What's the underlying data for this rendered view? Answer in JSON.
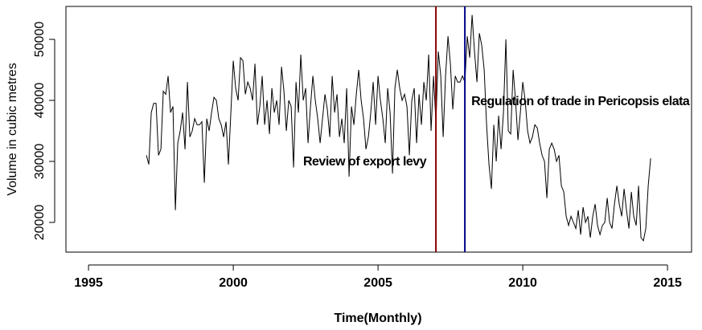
{
  "chart_data": {
    "type": "line",
    "xlabel": "Time(Monthly)",
    "ylabel": "Volume in cubic metres",
    "color": "#000000",
    "xlim": [
      1994.22,
      2015.83
    ],
    "ylim": [
      15132,
      55395
    ],
    "xticks": [
      1995,
      2000,
      2005,
      2010,
      2015
    ],
    "yticks": [
      20000,
      30000,
      40000,
      50000
    ],
    "vlines": [
      {
        "x": 2007,
        "color": "#8b0000",
        "label": "Review of export levy"
      },
      {
        "x": 2008,
        "color": "#00008b",
        "label": "Regulation of trade in Pericopsis elata"
      }
    ],
    "x": [
      1997,
      1997.083,
      1997.167,
      1997.25,
      1997.333,
      1997.417,
      1997.5,
      1997.583,
      1997.667,
      1997.75,
      1997.833,
      1997.917,
      1998,
      1998.083,
      1998.167,
      1998.25,
      1998.333,
      1998.417,
      1998.5,
      1998.583,
      1998.667,
      1998.75,
      1998.833,
      1998.917,
      1999,
      1999.083,
      1999.167,
      1999.25,
      1999.333,
      1999.417,
      1999.5,
      1999.583,
      1999.667,
      1999.75,
      1999.833,
      1999.917,
      2000,
      2000.083,
      2000.167,
      2000.25,
      2000.333,
      2000.417,
      2000.5,
      2000.583,
      2000.667,
      2000.75,
      2000.833,
      2000.917,
      2001,
      2001.083,
      2001.167,
      2001.25,
      2001.333,
      2001.417,
      2001.5,
      2001.583,
      2001.667,
      2001.75,
      2001.833,
      2001.917,
      2002,
      2002.083,
      2002.167,
      2002.25,
      2002.333,
      2002.417,
      2002.5,
      2002.583,
      2002.667,
      2002.75,
      2002.833,
      2002.917,
      2003,
      2003.083,
      2003.167,
      2003.25,
      2003.333,
      2003.417,
      2003.5,
      2003.583,
      2003.667,
      2003.75,
      2003.833,
      2003.917,
      2004,
      2004.083,
      2004.167,
      2004.25,
      2004.333,
      2004.417,
      2004.5,
      2004.583,
      2004.667,
      2004.75,
      2004.833,
      2004.917,
      2005,
      2005.083,
      2005.167,
      2005.25,
      2005.333,
      2005.417,
      2005.5,
      2005.583,
      2005.667,
      2005.75,
      2005.833,
      2005.917,
      2006,
      2006.083,
      2006.167,
      2006.25,
      2006.333,
      2006.417,
      2006.5,
      2006.583,
      2006.667,
      2006.75,
      2006.833,
      2006.917,
      2007,
      2007.083,
      2007.167,
      2007.25,
      2007.333,
      2007.417,
      2007.5,
      2007.583,
      2007.667,
      2007.75,
      2007.833,
      2007.917,
      2008,
      2008.083,
      2008.167,
      2008.25,
      2008.333,
      2008.417,
      2008.5,
      2008.583,
      2008.667,
      2008.75,
      2008.833,
      2008.917,
      2009,
      2009.083,
      2009.167,
      2009.25,
      2009.333,
      2009.417,
      2009.5,
      2009.583,
      2009.667,
      2009.75,
      2009.833,
      2009.917,
      2010,
      2010.083,
      2010.167,
      2010.25,
      2010.333,
      2010.417,
      2010.5,
      2010.583,
      2010.667,
      2010.75,
      2010.833,
      2010.917,
      2011,
      2011.083,
      2011.167,
      2011.25,
      2011.333,
      2011.417,
      2011.5,
      2011.583,
      2011.667,
      2011.75,
      2011.833,
      2011.917,
      2012,
      2012.083,
      2012.167,
      2012.25,
      2012.333,
      2012.417,
      2012.5,
      2012.583,
      2012.667,
      2012.75,
      2012.833,
      2012.917,
      2013,
      2013.083,
      2013.167,
      2013.25,
      2013.333,
      2013.417,
      2013.5,
      2013.583,
      2013.667,
      2013.75,
      2013.833,
      2013.917,
      2014,
      2014.083,
      2014.167,
      2014.25,
      2014.333,
      2014.417
    ],
    "values": [
      31000,
      29500,
      38000,
      39500,
      39500,
      31000,
      32000,
      41500,
      41000,
      44000,
      38000,
      39000,
      22000,
      33000,
      35000,
      38000,
      32000,
      43000,
      34000,
      35000,
      37000,
      36000,
      36000,
      36500,
      26500,
      37000,
      35000,
      38000,
      40500,
      40000,
      37000,
      36000,
      34000,
      36500,
      29500,
      38000,
      46500,
      42000,
      40000,
      47000,
      46500,
      41000,
      43000,
      42000,
      40000,
      46000,
      36000,
      39000,
      44000,
      36000,
      40000,
      34500,
      42000,
      38000,
      40000,
      36000,
      45500,
      41500,
      35000,
      40000,
      39000,
      29000,
      43000,
      38000,
      47500,
      40000,
      42000,
      33000,
      39000,
      44000,
      40000,
      37000,
      33000,
      37000,
      41000,
      38500,
      34000,
      44000,
      38000,
      41000,
      34000,
      37000,
      33000,
      42000,
      27500,
      39000,
      36000,
      41000,
      45000,
      40000,
      37000,
      32000,
      34000,
      38000,
      43000,
      36000,
      44000,
      40000,
      37000,
      33000,
      42000,
      38000,
      28000,
      42000,
      45000,
      42000,
      40000,
      41000,
      39000,
      31000,
      40000,
      42000,
      33000,
      41000,
      36000,
      43000,
      40000,
      47500,
      35000,
      44000,
      36500,
      48000,
      44000,
      34000,
      44000,
      50500,
      46000,
      38500,
      44000,
      43000,
      43000,
      44000,
      43000,
      50500,
      47000,
      54000,
      48000,
      43000,
      51000,
      49000,
      45000,
      36000,
      29500,
      25500,
      36000,
      30000,
      37500,
      32000,
      38000,
      50000,
      35000,
      34500,
      45000,
      40000,
      33500,
      38000,
      43000,
      40000,
      35000,
      33000,
      34000,
      36000,
      35500,
      33000,
      31000,
      30000,
      24000,
      32000,
      33000,
      32000,
      30000,
      31000,
      26000,
      25000,
      21000,
      19500,
      21000,
      20000,
      19000,
      22000,
      18000,
      22500,
      20000,
      21000,
      17500,
      21000,
      23000,
      19500,
      18000,
      19500,
      20000,
      24000,
      20000,
      19000,
      23000,
      26000,
      23000,
      21000,
      25500,
      22000,
      19000,
      25000,
      21000,
      19500,
      26000,
      17500,
      17000,
      19000,
      26000,
      30500
    ]
  }
}
